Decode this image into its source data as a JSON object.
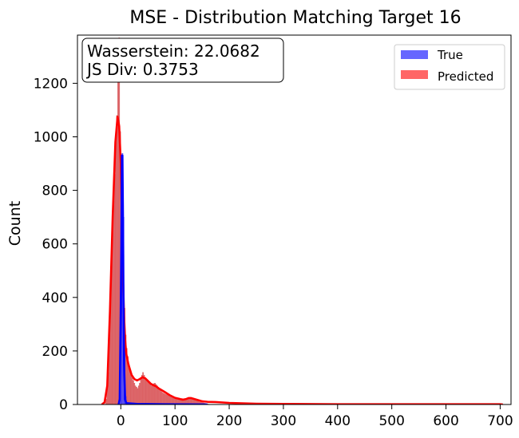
{
  "chart_data": {
    "type": "histogram",
    "title": "MSE - Distribution Matching Target 16",
    "xlabel": "",
    "ylabel": "Count",
    "xlim": [
      -80,
      720
    ],
    "ylim": [
      0,
      1380
    ],
    "x_ticks": [
      0,
      100,
      200,
      300,
      400,
      500,
      600,
      700
    ],
    "y_ticks": [
      0,
      200,
      400,
      600,
      800,
      1000,
      1200
    ],
    "grid": false,
    "legend_position": "top-right",
    "annotation": {
      "lines": [
        "Wasserstein: 22.0682",
        "JS Div: 0.3753"
      ],
      "position": "top-left"
    },
    "colors": {
      "true": "#0000ff",
      "predicted": "#ff0000",
      "true_fill": "#6666ff",
      "predicted_fill": "#ff6666",
      "predicted_hist": "#d9595c"
    },
    "series": [
      {
        "name": "True",
        "kind": "histogram",
        "bin_width": 2,
        "bins": [
          [
            -2,
            60
          ],
          [
            0,
            480
          ],
          [
            2,
            938
          ],
          [
            4,
            700
          ],
          [
            6,
            220
          ],
          [
            8,
            30
          ]
        ],
        "kde": [
          [
            -4,
            0
          ],
          [
            -2,
            20
          ],
          [
            0,
            380
          ],
          [
            1,
            600
          ],
          [
            2,
            930
          ],
          [
            3,
            930
          ],
          [
            4,
            700
          ],
          [
            5,
            380
          ],
          [
            6,
            150
          ],
          [
            8,
            20
          ],
          [
            10,
            5
          ],
          [
            30,
            2
          ],
          [
            80,
            1
          ],
          [
            160,
            0
          ]
        ]
      },
      {
        "name": "Predicted",
        "kind": "histogram",
        "bin_width": 2,
        "bins": [
          [
            -28,
            20
          ],
          [
            -26,
            60
          ],
          [
            -24,
            120
          ],
          [
            -22,
            250
          ],
          [
            -20,
            400
          ],
          [
            -18,
            520
          ],
          [
            -16,
            640
          ],
          [
            -14,
            760
          ],
          [
            -12,
            860
          ],
          [
            -10,
            980
          ],
          [
            -8,
            1080
          ],
          [
            -6,
            1290
          ],
          [
            -4,
            1370
          ],
          [
            -2,
            1020
          ],
          [
            0,
            900
          ],
          [
            2,
            800
          ],
          [
            4,
            560
          ],
          [
            6,
            360
          ],
          [
            8,
            260
          ],
          [
            10,
            210
          ],
          [
            12,
            180
          ],
          [
            14,
            150
          ],
          [
            16,
            130
          ],
          [
            18,
            110
          ],
          [
            20,
            100
          ],
          [
            22,
            90
          ],
          [
            24,
            80
          ],
          [
            26,
            70
          ],
          [
            28,
            65
          ],
          [
            30,
            60
          ],
          [
            32,
            70
          ],
          [
            34,
            80
          ],
          [
            36,
            95
          ],
          [
            38,
            110
          ],
          [
            40,
            120
          ],
          [
            42,
            110
          ],
          [
            44,
            100
          ],
          [
            46,
            95
          ],
          [
            48,
            90
          ],
          [
            50,
            85
          ],
          [
            52,
            80
          ],
          [
            54,
            75
          ],
          [
            56,
            70
          ],
          [
            58,
            72
          ],
          [
            60,
            78
          ],
          [
            62,
            80
          ],
          [
            64,
            75
          ],
          [
            66,
            70
          ],
          [
            68,
            65
          ],
          [
            70,
            58
          ],
          [
            72,
            52
          ],
          [
            74,
            48
          ],
          [
            76,
            45
          ],
          [
            78,
            42
          ],
          [
            80,
            40
          ],
          [
            82,
            38
          ],
          [
            84,
            36
          ],
          [
            86,
            34
          ],
          [
            88,
            32
          ],
          [
            90,
            30
          ],
          [
            92,
            28
          ],
          [
            94,
            26
          ],
          [
            96,
            24
          ],
          [
            98,
            22
          ],
          [
            100,
            22
          ],
          [
            102,
            20
          ],
          [
            104,
            19
          ],
          [
            106,
            18
          ],
          [
            108,
            17
          ],
          [
            110,
            16
          ],
          [
            112,
            15
          ],
          [
            114,
            14
          ],
          [
            116,
            14
          ],
          [
            118,
            15
          ],
          [
            120,
            17
          ],
          [
            122,
            20
          ],
          [
            124,
            22
          ],
          [
            126,
            24
          ],
          [
            128,
            24
          ],
          [
            130,
            24
          ],
          [
            132,
            22
          ],
          [
            134,
            20
          ],
          [
            136,
            18
          ],
          [
            138,
            16
          ],
          [
            140,
            14
          ],
          [
            142,
            12
          ],
          [
            144,
            10
          ],
          [
            146,
            9
          ],
          [
            148,
            8
          ],
          [
            150,
            7
          ],
          [
            152,
            6
          ],
          [
            154,
            5
          ],
          [
            156,
            4
          ],
          [
            158,
            3
          ],
          [
            160,
            2
          ],
          [
            170,
            1
          ],
          [
            180,
            1
          ],
          [
            200,
            1
          ],
          [
            220,
            1
          ],
          [
            250,
            1
          ]
        ],
        "kde": [
          [
            -35,
            0
          ],
          [
            -30,
            8
          ],
          [
            -25,
            70
          ],
          [
            -20,
            350
          ],
          [
            -15,
            700
          ],
          [
            -10,
            980
          ],
          [
            -6,
            1075
          ],
          [
            -3,
            1040
          ],
          [
            0,
            900
          ],
          [
            2,
            700
          ],
          [
            4,
            480
          ],
          [
            6,
            330
          ],
          [
            8,
            240
          ],
          [
            10,
            190
          ],
          [
            14,
            150
          ],
          [
            20,
            110
          ],
          [
            25,
            95
          ],
          [
            30,
            90
          ],
          [
            35,
            95
          ],
          [
            40,
            102
          ],
          [
            45,
            98
          ],
          [
            50,
            88
          ],
          [
            55,
            78
          ],
          [
            60,
            72
          ],
          [
            65,
            68
          ],
          [
            70,
            60
          ],
          [
            80,
            48
          ],
          [
            90,
            35
          ],
          [
            100,
            25
          ],
          [
            110,
            20
          ],
          [
            115,
            18
          ],
          [
            120,
            20
          ],
          [
            125,
            24
          ],
          [
            130,
            24
          ],
          [
            140,
            18
          ],
          [
            150,
            12
          ],
          [
            160,
            10
          ],
          [
            175,
            9
          ],
          [
            200,
            6
          ],
          [
            250,
            3
          ],
          [
            300,
            2
          ],
          [
            400,
            1
          ],
          [
            500,
            1
          ],
          [
            600,
            1
          ],
          [
            700,
            1
          ],
          [
            705,
            0
          ]
        ]
      }
    ]
  }
}
